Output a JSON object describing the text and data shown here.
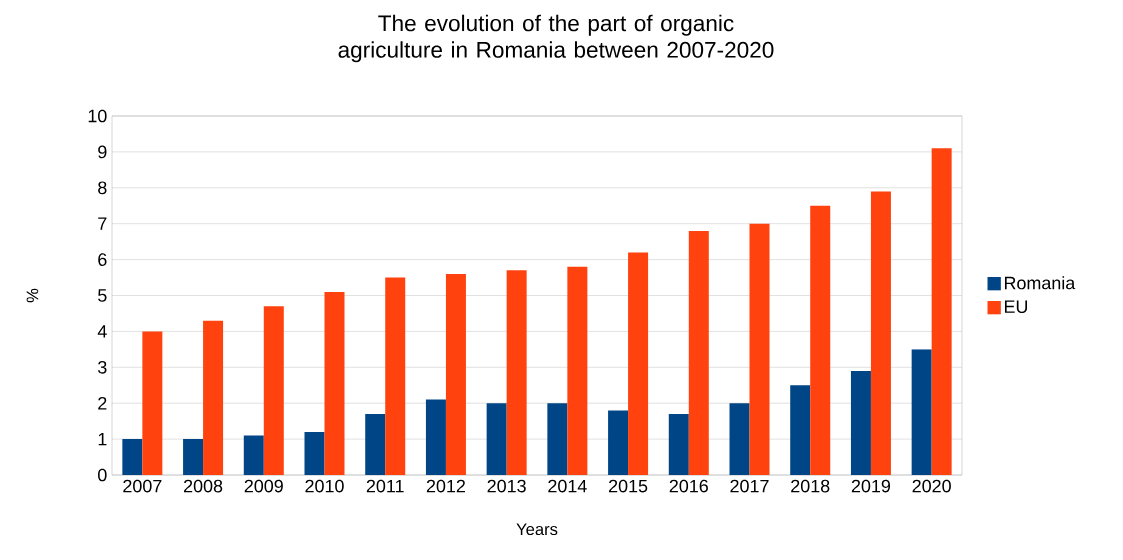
{
  "chart_data": {
    "type": "bar",
    "title": "The evolution of the part of organic agriculture in Romania between 2007-2020",
    "xlabel": "Years",
    "ylabel": "%",
    "categories": [
      "2007",
      "2008",
      "2009",
      "2010",
      "2011",
      "2012",
      "2013",
      "2014",
      "2015",
      "2016",
      "2017",
      "2018",
      "2019",
      "2020"
    ],
    "series": [
      {
        "name": "Romania",
        "color": "#004586",
        "values": [
          1.0,
          1.0,
          1.1,
          1.2,
          1.7,
          2.1,
          2.0,
          2.0,
          1.8,
          1.7,
          2.0,
          2.5,
          2.9,
          3.5
        ]
      },
      {
        "name": "EU",
        "color": "#ff420e",
        "values": [
          4.0,
          4.3,
          4.7,
          5.1,
          5.5,
          5.6,
          5.7,
          5.8,
          6.2,
          6.8,
          7.0,
          7.5,
          7.9,
          9.1
        ]
      }
    ],
    "ylim": [
      0,
      10
    ],
    "yticks": [
      0,
      1,
      2,
      3,
      4,
      5,
      6,
      7,
      8,
      9,
      10
    ],
    "grid": "y",
    "legend": "right"
  }
}
